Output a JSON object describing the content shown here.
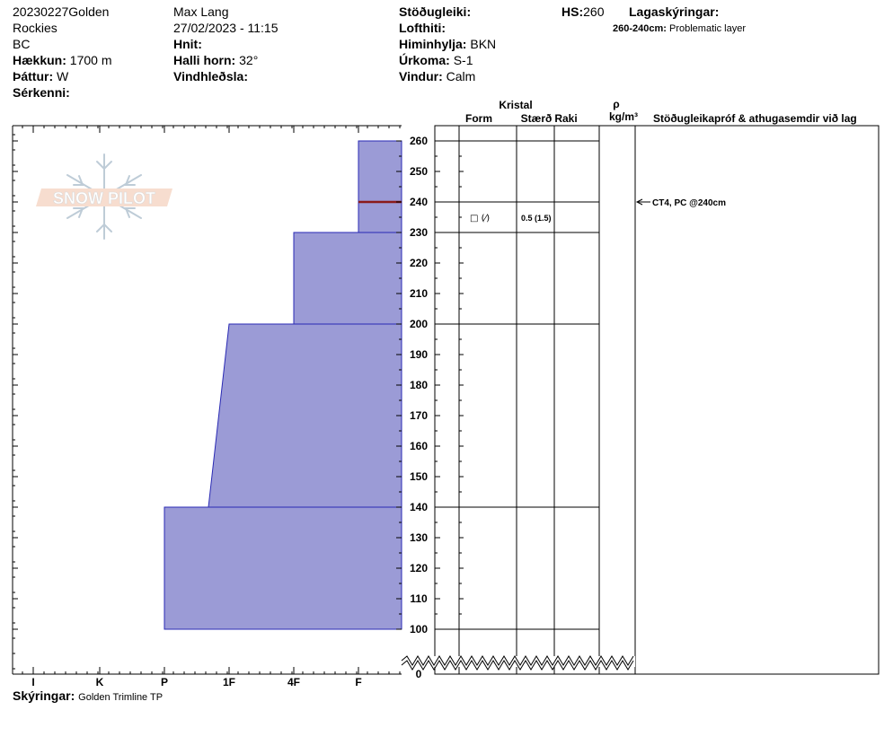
{
  "header": {
    "site_line1": "20230227Golden",
    "site_line2": "Rockies",
    "site_line3": "BC",
    "elevation_label": "Hækkun:",
    "elevation_value": "1700 m",
    "aspect_label": "Þáttur:",
    "aspect_value": "W",
    "features_label": "Sérkenni:",
    "observer": "Max Lang",
    "datetime": "27/02/2023 - 11:15",
    "coords_label": "Hnit:",
    "slope_label": "Halli horn:",
    "slope_value": "32°",
    "wind_loading_label": "Vindhleðsla:",
    "stability_label": "Stöðugleiki:",
    "air_temp_label": "Lofthiti:",
    "sky_label": "Himinhylja:",
    "sky_value": "BKN",
    "precip_label": "Úrkoma:",
    "precip_value": "S-1",
    "wind_label": "Vindur:",
    "wind_value": "Calm",
    "hs_label": "HS:",
    "hs_value": "260",
    "layer_notes_label": "Lagaskýringar:",
    "layer_note_range": "260-240cm:",
    "layer_note_text": "Problematic layer"
  },
  "columns": {
    "crystal": "Kristal",
    "form": "Form",
    "size": "Stærð",
    "moisture": "Raki",
    "density_symbol": "ρ",
    "density_unit": "kg/m³",
    "tests": "Stöðugleikapróf & athugasemdir við lag"
  },
  "footer": {
    "notes_label": "Skýringar:",
    "notes_value": "Golden Trimline TP"
  },
  "logo_text": "SNOW PILOT",
  "colors": {
    "layer_fill": "#9b9bd6",
    "layer_stroke": "#2a2ab4",
    "problem_line": "#8b1a1a"
  },
  "chart_data": {
    "type": "snow-profile",
    "y_ticks": [
      0,
      100,
      110,
      120,
      130,
      140,
      150,
      160,
      170,
      180,
      190,
      200,
      210,
      220,
      230,
      240,
      250,
      260
    ],
    "y_break": [
      0,
      100
    ],
    "hardness_labels": [
      "I",
      "K",
      "P",
      "1F",
      "4F",
      "F"
    ],
    "layers": [
      {
        "top": 260,
        "bottom": 230,
        "hardness_top": "F",
        "hardness_bottom": "F"
      },
      {
        "top": 230,
        "bottom": 200,
        "hardness_top": "4F",
        "hardness_bottom": "4F"
      },
      {
        "top": 200,
        "bottom": 140,
        "hardness_top": "1F",
        "hardness_bottom": "1F-"
      },
      {
        "top": 140,
        "bottom": 100,
        "hardness_top": "P",
        "hardness_bottom": "P"
      }
    ],
    "problem_layer_depth": 240,
    "layer_boundaries": [
      260,
      240,
      230,
      200,
      140,
      100
    ],
    "crystal_entries": [
      {
        "depth": 235,
        "form": "□ (⁄)",
        "size": "0.5 (1.5)"
      }
    ],
    "test_results": [
      {
        "depth": 240,
        "text": "CT4, PC @240cm"
      }
    ]
  }
}
